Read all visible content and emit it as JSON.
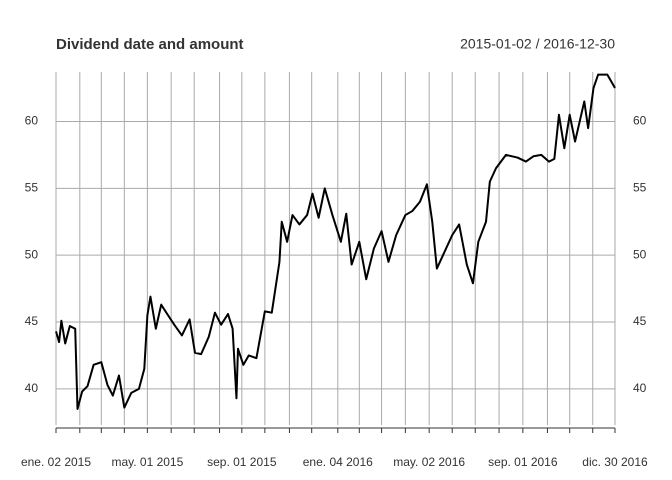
{
  "chart_data": {
    "type": "line",
    "title": "Dividend date and amount",
    "subtitle": "2015-01-02 / 2016-12-30",
    "x": [
      "2015-01-02",
      "2015-01-06",
      "2015-01-09",
      "2015-01-14",
      "2015-01-20",
      "2015-01-27",
      "2015-01-30",
      "2015-02-05",
      "2015-02-12",
      "2015-02-20",
      "2015-03-02",
      "2015-03-10",
      "2015-03-17",
      "2015-03-25",
      "2015-04-01",
      "2015-04-10",
      "2015-04-20",
      "2015-04-27",
      "2015-05-01",
      "2015-05-05",
      "2015-05-12",
      "2015-05-19",
      "2015-05-28",
      "2015-06-05",
      "2015-06-15",
      "2015-06-25",
      "2015-07-02",
      "2015-07-10",
      "2015-07-20",
      "2015-07-28",
      "2015-08-05",
      "2015-08-14",
      "2015-08-20",
      "2015-08-25",
      "2015-08-27",
      "2015-09-03",
      "2015-09-10",
      "2015-09-20",
      "2015-10-01",
      "2015-10-10",
      "2015-10-20",
      "2015-10-23",
      "2015-10-30",
      "2015-11-06",
      "2015-11-15",
      "2015-11-25",
      "2015-12-02",
      "2015-12-10",
      "2015-12-18",
      "2015-12-28",
      "2016-01-08",
      "2016-01-15",
      "2016-01-22",
      "2016-02-01",
      "2016-02-10",
      "2016-02-20",
      "2016-03-01",
      "2016-03-10",
      "2016-03-20",
      "2016-04-01",
      "2016-04-10",
      "2016-04-20",
      "2016-04-29",
      "2016-05-06",
      "2016-05-12",
      "2016-05-20",
      "2016-06-01",
      "2016-06-10",
      "2016-06-20",
      "2016-06-28",
      "2016-07-05",
      "2016-07-15",
      "2016-07-20",
      "2016-07-28",
      "2016-08-10",
      "2016-08-25",
      "2016-09-05",
      "2016-09-15",
      "2016-09-25",
      "2016-10-05",
      "2016-10-12",
      "2016-10-18",
      "2016-10-25",
      "2016-11-01",
      "2016-11-08",
      "2016-11-20",
      "2016-11-25",
      "2016-12-02",
      "2016-12-08",
      "2016-12-20",
      "2016-12-30"
    ],
    "series": [
      {
        "color": "#000000",
        "values": [
          44.3,
          43.5,
          45.1,
          43.4,
          44.7,
          44.5,
          38.5,
          39.8,
          40.2,
          41.8,
          42.0,
          40.3,
          39.5,
          41.0,
          38.6,
          39.7,
          40.0,
          41.5,
          45.5,
          46.9,
          44.5,
          46.3,
          45.5,
          44.8,
          44.0,
          45.2,
          42.7,
          42.6,
          43.9,
          45.7,
          44.8,
          45.6,
          44.5,
          39.3,
          43.0,
          41.8,
          42.5,
          42.3,
          45.8,
          45.7,
          49.5,
          52.5,
          51.0,
          53.0,
          52.3,
          53.0,
          54.6,
          52.8,
          55.0,
          53.0,
          51.0,
          53.1,
          49.3,
          51.0,
          48.2,
          50.5,
          51.8,
          49.5,
          51.5,
          53.0,
          53.3,
          54.0,
          55.3,
          52.5,
          49.0,
          50.0,
          51.5,
          52.3,
          49.3,
          47.9,
          51.0,
          52.5,
          55.5,
          56.5,
          57.5,
          57.3,
          57.0,
          57.4,
          57.5,
          57.0,
          57.2,
          60.5,
          58.0,
          60.5,
          58.5,
          61.5,
          59.5,
          62.5,
          63.5,
          63.5,
          62.5
        ]
      }
    ],
    "xlim": [
      "2015-01-02",
      "2016-12-30"
    ],
    "xticks": [
      {
        "value": "2015-01-02",
        "label": "ene. 02 2015"
      },
      {
        "value": "2015-02-02",
        "label": null
      },
      {
        "value": "2015-03-02",
        "label": null
      },
      {
        "value": "2015-04-01",
        "label": null
      },
      {
        "value": "2015-05-01",
        "label": "may. 01 2015"
      },
      {
        "value": "2015-06-01",
        "label": null
      },
      {
        "value": "2015-07-01",
        "label": null
      },
      {
        "value": "2015-08-03",
        "label": null
      },
      {
        "value": "2015-09-01",
        "label": "sep. 01 2015"
      },
      {
        "value": "2015-10-01",
        "label": null
      },
      {
        "value": "2015-11-02",
        "label": null
      },
      {
        "value": "2015-12-01",
        "label": null
      },
      {
        "value": "2016-01-04",
        "label": "ene. 04 2016"
      },
      {
        "value": "2016-02-01",
        "label": null
      },
      {
        "value": "2016-03-01",
        "label": null
      },
      {
        "value": "2016-04-01",
        "label": null
      },
      {
        "value": "2016-05-02",
        "label": "may. 02 2016"
      },
      {
        "value": "2016-06-01",
        "label": null
      },
      {
        "value": "2016-07-01",
        "label": null
      },
      {
        "value": "2016-08-01",
        "label": null
      },
      {
        "value": "2016-09-01",
        "label": "sep. 01 2016"
      },
      {
        "value": "2016-10-03",
        "label": null
      },
      {
        "value": "2016-11-01",
        "label": null
      },
      {
        "value": "2016-12-01",
        "label": null
      },
      {
        "value": "2016-12-30",
        "label": "dic. 30 2016"
      }
    ],
    "ylim": [
      37.3,
      63.7
    ],
    "yticks": [
      40,
      45,
      50,
      55,
      60
    ],
    "grid": true
  }
}
